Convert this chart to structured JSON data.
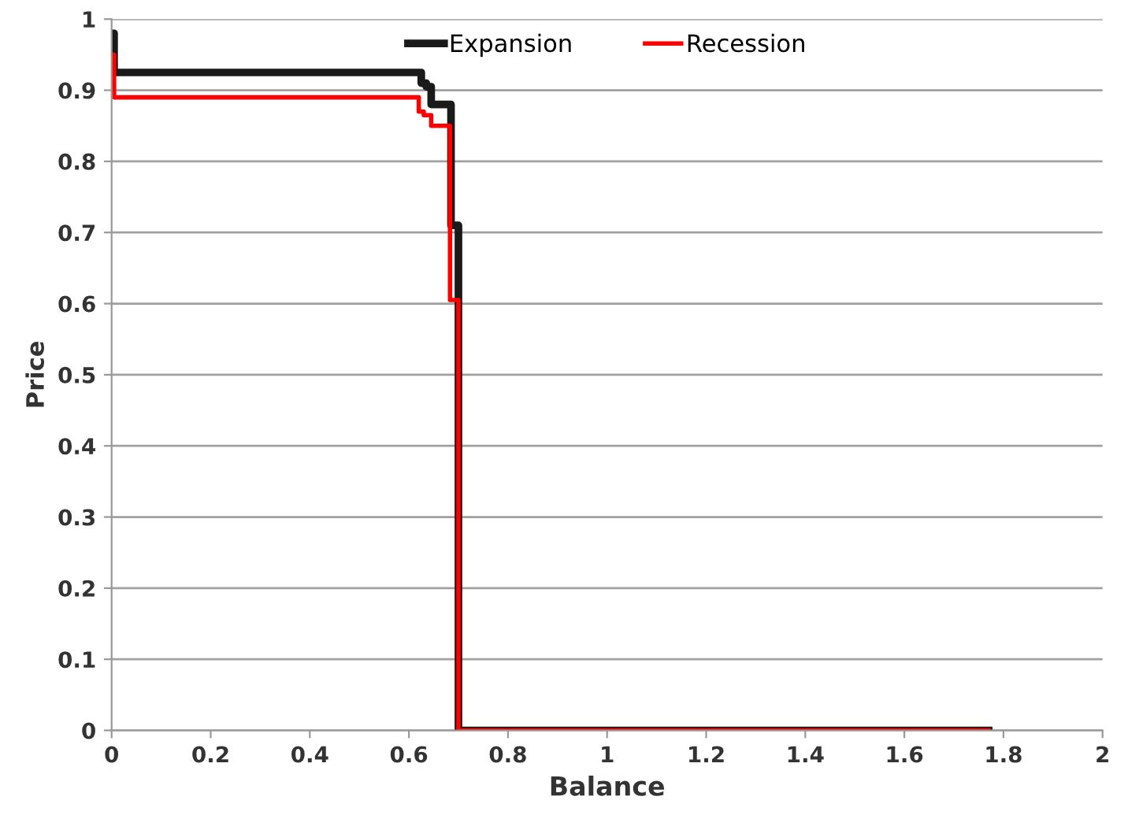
{
  "chart_data": {
    "type": "step",
    "xlabel": "Balance",
    "ylabel": "Price",
    "series": [
      {
        "name": "Expansion",
        "color": "#1a1a1a",
        "x": [
          0,
          0.005,
          0.625,
          0.635,
          0.645,
          0.685,
          0.7,
          1.77
        ],
        "values": [
          0.98,
          0.925,
          0.91,
          0.905,
          0.88,
          0.71,
          0,
          0
        ]
      },
      {
        "name": "Recession",
        "color": "#ff0000",
        "x": [
          0,
          0.005,
          0.62,
          0.63,
          0.645,
          0.683,
          0.7,
          1.77
        ],
        "values": [
          0.95,
          0.89,
          0.87,
          0.865,
          0.85,
          0.605,
          0,
          0
        ]
      }
    ],
    "xlim": [
      0,
      2
    ],
    "ylim": [
      0,
      1
    ],
    "xticks": [
      0,
      0.2,
      0.4,
      0.6,
      0.8,
      1,
      1.2,
      1.4,
      1.6,
      1.8,
      2
    ],
    "yticks": [
      0,
      0.1,
      0.2,
      0.3,
      0.4,
      0.5,
      0.6,
      0.7,
      0.8,
      0.9,
      1
    ],
    "grid": "y",
    "legend": "top"
  }
}
